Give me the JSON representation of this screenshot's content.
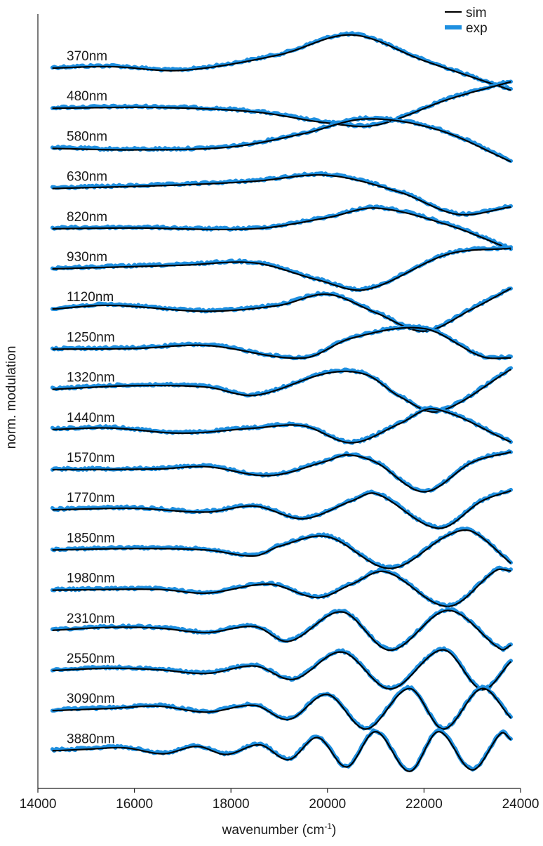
{
  "chart_data": {
    "type": "line",
    "xlabel": "wavenumber (cm",
    "xlabel_sup": "-1",
    "xlabel_close": ")",
    "ylabel": "norm. modulation",
    "xlim": [
      14000,
      24000
    ],
    "x_range_plotted": [
      14300,
      23800
    ],
    "x_ticks": [
      14000,
      16000,
      18000,
      20000,
      22000,
      24000
    ],
    "x_tick_labels": [
      "14000",
      "16000",
      "18000",
      "20000",
      "22000",
      "24000"
    ],
    "legend": {
      "placement": "top-right",
      "entries": [
        {
          "label": "sim",
          "color": "#000000"
        },
        {
          "label": "exp",
          "color": "#1e8fe0"
        }
      ]
    },
    "traces": [
      {
        "label": "370nm",
        "points": [
          [
            14300,
            0
          ],
          [
            15500,
            0.02
          ],
          [
            17000,
            -0.03
          ],
          [
            19000,
            0.18
          ],
          [
            20500,
            0.45
          ],
          [
            22000,
            0.1
          ],
          [
            23800,
            -0.3
          ]
        ]
      },
      {
        "label": "480nm",
        "points": [
          [
            14300,
            0
          ],
          [
            16500,
            0.01
          ],
          [
            18500,
            -0.05
          ],
          [
            20000,
            -0.2
          ],
          [
            21000,
            -0.23
          ],
          [
            22500,
            0.12
          ],
          [
            23800,
            0.36
          ]
        ]
      },
      {
        "label": "580nm",
        "points": [
          [
            14300,
            0
          ],
          [
            16000,
            -0.02
          ],
          [
            18000,
            0.02
          ],
          [
            19500,
            0.2
          ],
          [
            20800,
            0.4
          ],
          [
            22300,
            0.25
          ],
          [
            23800,
            -0.18
          ]
        ]
      },
      {
        "label": "630nm",
        "points": [
          [
            14300,
            0
          ],
          [
            17000,
            0.05
          ],
          [
            18500,
            0.1
          ],
          [
            20000,
            0.18
          ],
          [
            21500,
            -0.05
          ],
          [
            22700,
            -0.35
          ],
          [
            23800,
            -0.25
          ]
        ]
      },
      {
        "label": "820nm",
        "points": [
          [
            14300,
            0
          ],
          [
            16000,
            0.01
          ],
          [
            18500,
            0
          ],
          [
            20000,
            0.15
          ],
          [
            21000,
            0.28
          ],
          [
            22500,
            0.05
          ],
          [
            23800,
            -0.28
          ]
        ]
      },
      {
        "label": "930nm",
        "points": [
          [
            14300,
            0
          ],
          [
            17000,
            0.05
          ],
          [
            18500,
            0.08
          ],
          [
            19800,
            -0.15
          ],
          [
            20800,
            -0.28
          ],
          [
            22500,
            0.2
          ],
          [
            23800,
            0.28
          ]
        ]
      },
      {
        "label": "1120nm",
        "points": [
          [
            14300,
            0
          ],
          [
            15500,
            0.05
          ],
          [
            17500,
            -0.03
          ],
          [
            19000,
            0.05
          ],
          [
            20000,
            0.2
          ],
          [
            21000,
            -0.05
          ],
          [
            22000,
            -0.3
          ],
          [
            23000,
            0
          ],
          [
            23800,
            0.28
          ]
        ]
      },
      {
        "label": "1250nm",
        "points": [
          [
            14300,
            0
          ],
          [
            16000,
            0.01
          ],
          [
            17500,
            0.05
          ],
          [
            19500,
            -0.12
          ],
          [
            20500,
            0.15
          ],
          [
            22000,
            0.28
          ],
          [
            23200,
            -0.1
          ],
          [
            23800,
            -0.12
          ]
        ]
      },
      {
        "label": "1320nm",
        "points": [
          [
            14300,
            0
          ],
          [
            16000,
            0.05
          ],
          [
            17500,
            0.03
          ],
          [
            18500,
            -0.08
          ],
          [
            20000,
            0.22
          ],
          [
            20800,
            0.2
          ],
          [
            21500,
            -0.1
          ],
          [
            22300,
            -0.3
          ],
          [
            23800,
            0.27
          ]
        ]
      },
      {
        "label": "1440nm",
        "points": [
          [
            14300,
            0
          ],
          [
            15500,
            0.02
          ],
          [
            17000,
            -0.05
          ],
          [
            18500,
            0.02
          ],
          [
            19500,
            0.05
          ],
          [
            20500,
            -0.18
          ],
          [
            21500,
            0.08
          ],
          [
            22200,
            0.28
          ],
          [
            23800,
            -0.17
          ]
        ]
      },
      {
        "label": "1570nm",
        "points": [
          [
            14300,
            0
          ],
          [
            16500,
            0.01
          ],
          [
            17500,
            0.04
          ],
          [
            18800,
            -0.08
          ],
          [
            20000,
            0.12
          ],
          [
            20400,
            0.2
          ],
          [
            21000,
            0.1
          ],
          [
            22000,
            -0.3
          ],
          [
            23000,
            0.1
          ],
          [
            23800,
            0.24
          ]
        ]
      },
      {
        "label": "1770nm",
        "points": [
          [
            14300,
            0
          ],
          [
            16000,
            0.02
          ],
          [
            17500,
            -0.03
          ],
          [
            18500,
            0.05
          ],
          [
            19500,
            -0.12
          ],
          [
            20500,
            0.12
          ],
          [
            21000,
            0.22
          ],
          [
            22300,
            -0.25
          ],
          [
            23200,
            0.12
          ],
          [
            23800,
            0.26
          ]
        ]
      },
      {
        "label": "1850nm",
        "points": [
          [
            14300,
            0
          ],
          [
            16000,
            0.02
          ],
          [
            17500,
            0
          ],
          [
            18500,
            -0.08
          ],
          [
            19000,
            0.05
          ],
          [
            20000,
            0.18
          ],
          [
            21300,
            -0.25
          ],
          [
            22500,
            0.2
          ],
          [
            23000,
            0.25
          ],
          [
            23800,
            -0.18
          ]
        ]
      },
      {
        "label": "1980nm",
        "points": [
          [
            14300,
            0
          ],
          [
            16500,
            0.01
          ],
          [
            17500,
            -0.04
          ],
          [
            18800,
            0.08
          ],
          [
            19800,
            -0.1
          ],
          [
            20500,
            0.08
          ],
          [
            21200,
            0.25
          ],
          [
            22500,
            -0.22
          ],
          [
            23500,
            0.27
          ],
          [
            23800,
            0.26
          ]
        ]
      },
      {
        "label": "2310nm",
        "points": [
          [
            14300,
            0
          ],
          [
            15500,
            0.04
          ],
          [
            16500,
            0.03
          ],
          [
            17500,
            -0.03
          ],
          [
            18500,
            0.05
          ],
          [
            19200,
            -0.15
          ],
          [
            20300,
            0.25
          ],
          [
            21300,
            -0.27
          ],
          [
            22500,
            0.27
          ],
          [
            23600,
            -0.26
          ],
          [
            23800,
            -0.2
          ]
        ]
      },
      {
        "label": "2550nm",
        "points": [
          [
            14300,
            0
          ],
          [
            15500,
            0.03
          ],
          [
            16500,
            0.01
          ],
          [
            17500,
            -0.04
          ],
          [
            18500,
            0.06
          ],
          [
            19300,
            -0.12
          ],
          [
            20300,
            0.25
          ],
          [
            21300,
            -0.25
          ],
          [
            22400,
            0.28
          ],
          [
            23200,
            -0.26
          ],
          [
            23800,
            0.12
          ]
        ]
      },
      {
        "label": "3090nm",
        "points": [
          [
            14300,
            0
          ],
          [
            15500,
            0.03
          ],
          [
            16500,
            0.06
          ],
          [
            17500,
            -0.02
          ],
          [
            18500,
            0.07
          ],
          [
            19200,
            -0.12
          ],
          [
            20000,
            0.22
          ],
          [
            20800,
            -0.25
          ],
          [
            21700,
            0.3
          ],
          [
            22400,
            -0.25
          ],
          [
            23200,
            0.3
          ],
          [
            23800,
            -0.1
          ]
        ]
      },
      {
        "label": "3880nm",
        "points": [
          [
            14300,
            0
          ],
          [
            15000,
            0.02
          ],
          [
            15800,
            0.04
          ],
          [
            16600,
            -0.04
          ],
          [
            17300,
            0.06
          ],
          [
            17900,
            -0.05
          ],
          [
            18600,
            0.08
          ],
          [
            19200,
            -0.12
          ],
          [
            19800,
            0.18
          ],
          [
            20400,
            -0.22
          ],
          [
            21000,
            0.26
          ],
          [
            21700,
            -0.28
          ],
          [
            22300,
            0.26
          ],
          [
            23000,
            -0.26
          ],
          [
            23600,
            0.24
          ],
          [
            23800,
            0.15
          ]
        ]
      }
    ]
  }
}
